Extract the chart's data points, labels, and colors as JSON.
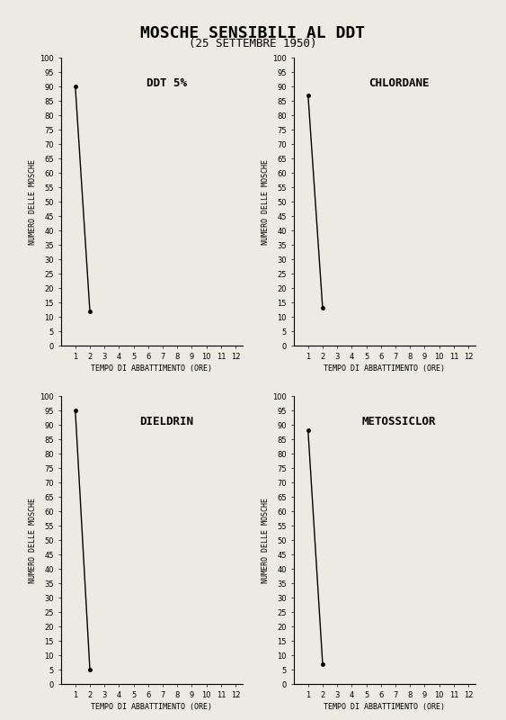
{
  "title": "MOSCHE SENSIBILI AL DDT",
  "subtitle": "(25 SETTEMBRE 1950)",
  "subplots": [
    {
      "label": "DDT 5%",
      "x": [
        1,
        2
      ],
      "y": [
        90,
        12
      ]
    },
    {
      "label": "CHLORDANE",
      "x": [
        1,
        2
      ],
      "y": [
        87,
        13
      ]
    },
    {
      "label": "DIELDRIN",
      "x": [
        1,
        2
      ],
      "y": [
        95,
        5
      ]
    },
    {
      "label": "METOSSICLOR",
      "x": [
        1,
        2
      ],
      "y": [
        88,
        7
      ]
    }
  ],
  "ylabel": "NUMERO DELLE MOSCHE",
  "xlabel": "TEMPO DI ABBATTIMENTO (ORE)",
  "ylim": [
    0,
    100
  ],
  "yticks": [
    0,
    5,
    10,
    15,
    20,
    25,
    30,
    35,
    40,
    45,
    50,
    55,
    60,
    65,
    70,
    75,
    80,
    85,
    90,
    95,
    100
  ],
  "xticks": [
    1,
    2,
    3,
    4,
    5,
    6,
    7,
    8,
    9,
    10,
    11,
    12
  ],
  "xlim": [
    0,
    12.5
  ],
  "line_color": "#000000",
  "bg_color": "#ede9e3",
  "title_fontsize": 13,
  "subtitle_fontsize": 9,
  "label_fontsize": 7,
  "tick_fontsize": 6,
  "ylabel_fontsize": 6
}
